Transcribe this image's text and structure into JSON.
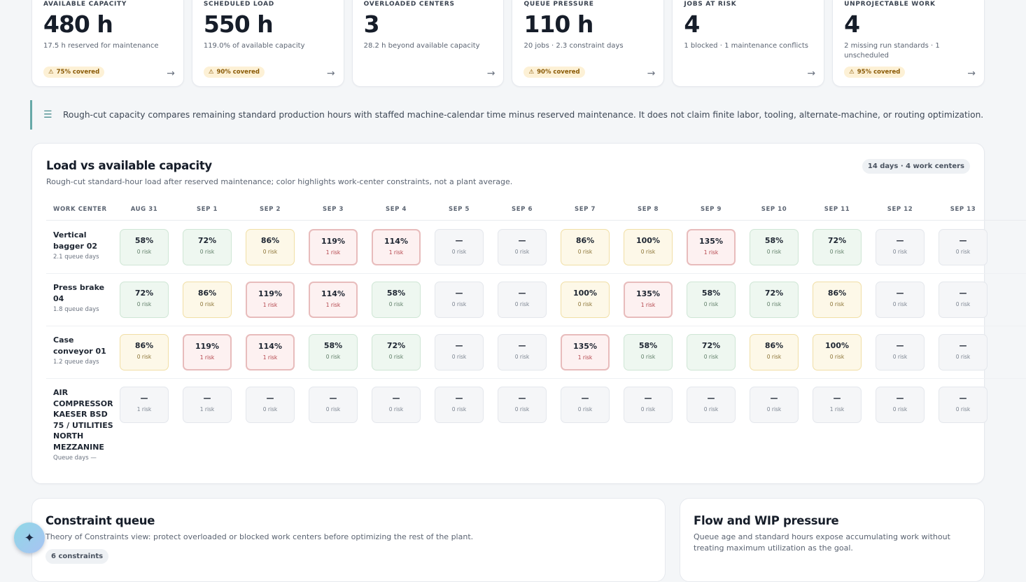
{
  "kpis": [
    {
      "label": "AVAILABLE CAPACITY",
      "value": "480 h",
      "sub": "17.5 h reserved for maintenance",
      "badge": "75% covered"
    },
    {
      "label": "SCHEDULED LOAD",
      "value": "550 h",
      "sub": "119.0% of available capacity",
      "badge": "90% covered"
    },
    {
      "label": "OVERLOADED CENTERS",
      "value": "3",
      "sub": "28.2 h beyond available capacity",
      "badge": null
    },
    {
      "label": "QUEUE PRESSURE",
      "value": "110 h",
      "sub": "20 jobs · 2.3 constraint days",
      "badge": "90% covered"
    },
    {
      "label": "JOBS AT RISK",
      "value": "4",
      "sub": "1 blocked · 1 maintenance conflicts",
      "badge": null
    },
    {
      "label": "UNPROJECTABLE WORK",
      "value": "4",
      "sub": "2 missing run standards · 1 unscheduled",
      "badge": "95% covered"
    }
  ],
  "icons": {
    "warning": "warning-icon",
    "arrow": "arrow-right-icon",
    "layers": "layers-icon",
    "sparkle": "sparkle-icon"
  },
  "note": {
    "text": "Rough-cut capacity compares remaining standard production hours with staffed machine-calendar time minus reserved maintenance. It does not claim finite labor, tooling, alternate-machine, or routing optimization."
  },
  "heatmap": {
    "title": "Load vs available capacity",
    "subtitle": "Rough-cut standard-hour load after reserved maintenance; color highlights work-center constraints, not a plant average.",
    "pill": "14 days · 4 work centers",
    "work_center_header": "WORK CENTER",
    "days": [
      "AUG 31",
      "SEP 1",
      "SEP 2",
      "SEP 3",
      "SEP 4",
      "SEP 5",
      "SEP 6",
      "SEP 7",
      "SEP 8",
      "SEP 9",
      "SEP 10",
      "SEP 11",
      "SEP 12",
      "SEP 13"
    ],
    "rows": [
      {
        "name": "Vertical bagger 02",
        "queue": "2.1 queue days",
        "cells": [
          {
            "pct": "58%",
            "risk": "0 risk",
            "level": "green"
          },
          {
            "pct": "72%",
            "risk": "0 risk",
            "level": "green"
          },
          {
            "pct": "86%",
            "risk": "0 risk",
            "level": "yellow"
          },
          {
            "pct": "119%",
            "risk": "1 risk",
            "level": "red"
          },
          {
            "pct": "114%",
            "risk": "1 risk",
            "level": "red"
          },
          {
            "pct": "—",
            "risk": "0 risk",
            "level": "grey"
          },
          {
            "pct": "—",
            "risk": "0 risk",
            "level": "grey"
          },
          {
            "pct": "86%",
            "risk": "0 risk",
            "level": "yellow"
          },
          {
            "pct": "100%",
            "risk": "0 risk",
            "level": "yellow"
          },
          {
            "pct": "135%",
            "risk": "1 risk",
            "level": "red"
          },
          {
            "pct": "58%",
            "risk": "0 risk",
            "level": "green"
          },
          {
            "pct": "72%",
            "risk": "0 risk",
            "level": "green"
          },
          {
            "pct": "—",
            "risk": "0 risk",
            "level": "grey"
          },
          {
            "pct": "—",
            "risk": "0 risk",
            "level": "grey"
          }
        ]
      },
      {
        "name": "Press brake 04",
        "queue": "1.8 queue days",
        "cells": [
          {
            "pct": "72%",
            "risk": "0 risk",
            "level": "green"
          },
          {
            "pct": "86%",
            "risk": "0 risk",
            "level": "yellow"
          },
          {
            "pct": "119%",
            "risk": "1 risk",
            "level": "red"
          },
          {
            "pct": "114%",
            "risk": "1 risk",
            "level": "red"
          },
          {
            "pct": "58%",
            "risk": "0 risk",
            "level": "green"
          },
          {
            "pct": "—",
            "risk": "0 risk",
            "level": "grey"
          },
          {
            "pct": "—",
            "risk": "0 risk",
            "level": "grey"
          },
          {
            "pct": "100%",
            "risk": "0 risk",
            "level": "yellow"
          },
          {
            "pct": "135%",
            "risk": "1 risk",
            "level": "red"
          },
          {
            "pct": "58%",
            "risk": "0 risk",
            "level": "green"
          },
          {
            "pct": "72%",
            "risk": "0 risk",
            "level": "green"
          },
          {
            "pct": "86%",
            "risk": "0 risk",
            "level": "yellow"
          },
          {
            "pct": "—",
            "risk": "0 risk",
            "level": "grey"
          },
          {
            "pct": "—",
            "risk": "0 risk",
            "level": "grey"
          }
        ]
      },
      {
        "name": "Case conveyor 01",
        "queue": "1.2 queue days",
        "cells": [
          {
            "pct": "86%",
            "risk": "0 risk",
            "level": "yellow"
          },
          {
            "pct": "119%",
            "risk": "1 risk",
            "level": "red"
          },
          {
            "pct": "114%",
            "risk": "1 risk",
            "level": "red"
          },
          {
            "pct": "58%",
            "risk": "0 risk",
            "level": "green"
          },
          {
            "pct": "72%",
            "risk": "0 risk",
            "level": "green"
          },
          {
            "pct": "—",
            "risk": "0 risk",
            "level": "grey"
          },
          {
            "pct": "—",
            "risk": "0 risk",
            "level": "grey"
          },
          {
            "pct": "135%",
            "risk": "1 risk",
            "level": "red"
          },
          {
            "pct": "58%",
            "risk": "0 risk",
            "level": "green"
          },
          {
            "pct": "72%",
            "risk": "0 risk",
            "level": "green"
          },
          {
            "pct": "86%",
            "risk": "0 risk",
            "level": "yellow"
          },
          {
            "pct": "100%",
            "risk": "0 risk",
            "level": "yellow"
          },
          {
            "pct": "—",
            "risk": "0 risk",
            "level": "grey"
          },
          {
            "pct": "—",
            "risk": "0 risk",
            "level": "grey"
          }
        ]
      },
      {
        "name": "AIR COMPRESSOR KAESER BSD 75 / UTILITIES NORTH MEZZANINE",
        "queue": "Queue days —",
        "cells": [
          {
            "pct": "—",
            "risk": "1 risk",
            "level": "grey"
          },
          {
            "pct": "—",
            "risk": "1 risk",
            "level": "grey"
          },
          {
            "pct": "—",
            "risk": "0 risk",
            "level": "grey"
          },
          {
            "pct": "—",
            "risk": "0 risk",
            "level": "grey"
          },
          {
            "pct": "—",
            "risk": "0 risk",
            "level": "grey"
          },
          {
            "pct": "—",
            "risk": "0 risk",
            "level": "grey"
          },
          {
            "pct": "—",
            "risk": "0 risk",
            "level": "grey"
          },
          {
            "pct": "—",
            "risk": "0 risk",
            "level": "grey"
          },
          {
            "pct": "—",
            "risk": "0 risk",
            "level": "grey"
          },
          {
            "pct": "—",
            "risk": "0 risk",
            "level": "grey"
          },
          {
            "pct": "—",
            "risk": "0 risk",
            "level": "grey"
          },
          {
            "pct": "—",
            "risk": "1 risk",
            "level": "grey"
          },
          {
            "pct": "—",
            "risk": "0 risk",
            "level": "grey"
          },
          {
            "pct": "—",
            "risk": "0 risk",
            "level": "grey"
          }
        ]
      }
    ]
  },
  "constraint_queue": {
    "title": "Constraint queue",
    "subtitle": "Theory of Constraints view: protect overloaded or blocked work centers before optimizing the rest of the plant.",
    "pill": "6 constraints"
  },
  "flow": {
    "title": "Flow and WIP pressure",
    "subtitle": "Queue age and standard hours expose accumulating work without treating maximum utilization as the goal."
  }
}
